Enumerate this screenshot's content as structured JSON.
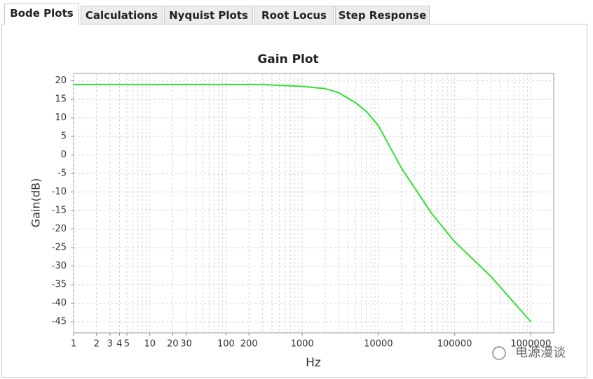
{
  "tabs": [
    "Bode Plots",
    "Calculations",
    "Nyquist Plots",
    "Root Locus",
    "Step Response"
  ],
  "watermark": "电源漫谈",
  "chart_data": {
    "type": "line",
    "title": "Gain Plot",
    "x_label": "Hz",
    "y_label": "Gain(dB)",
    "x": [
      1,
      10,
      100,
      300,
      1000,
      2000,
      3000,
      5000,
      7000,
      10000,
      20000,
      50000,
      100000,
      300000,
      1000000
    ],
    "series": [
      {
        "color": "#33e033",
        "values": [
          19,
          19,
          19,
          19,
          18.5,
          17.9,
          16.8,
          14.1,
          11.7,
          7.9,
          -3.5,
          -15.8,
          -23.4,
          -32.8,
          -45
        ]
      }
    ],
    "log_x": true,
    "grid": true,
    "xlim": [
      1,
      2000000
    ],
    "ylim": [
      -48,
      22
    ],
    "xticks": [
      1,
      2,
      3,
      4,
      5,
      10,
      20,
      30,
      100,
      200,
      1000,
      10000,
      100000,
      1000000
    ],
    "x_grid": [
      1,
      2,
      3,
      4,
      5,
      6,
      7,
      8,
      9,
      10,
      20,
      30,
      40,
      50,
      60,
      70,
      80,
      90,
      100,
      200,
      300,
      400,
      500,
      600,
      700,
      800,
      900,
      1000,
      2000,
      3000,
      4000,
      5000,
      6000,
      7000,
      8000,
      9000,
      10000,
      20000,
      30000,
      40000,
      50000,
      60000,
      70000,
      80000,
      90000,
      100000,
      200000,
      300000,
      400000,
      500000,
      600000,
      700000,
      800000,
      900000,
      1000000
    ],
    "yticks": [
      20,
      15,
      10,
      5,
      0,
      -5,
      -10,
      -15,
      -20,
      -25,
      -30,
      -35,
      -40,
      -45
    ]
  }
}
